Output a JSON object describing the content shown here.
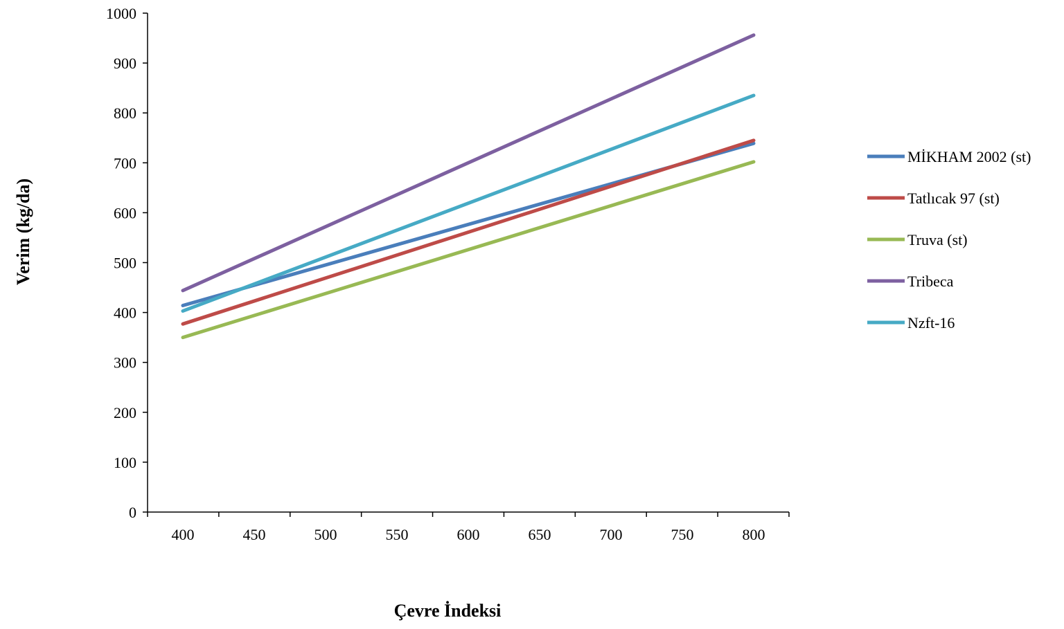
{
  "chart_data": {
    "type": "line",
    "title": "",
    "xlabel": "Çevre İndeksi",
    "ylabel": "Verim (kg/da)",
    "xlim": [
      400,
      800
    ],
    "ylim": [
      0,
      1000
    ],
    "x_ticks": [
      400,
      450,
      500,
      550,
      600,
      650,
      700,
      750,
      800
    ],
    "y_ticks": [
      0,
      100,
      200,
      300,
      400,
      500,
      600,
      700,
      800,
      900,
      1000
    ],
    "grid": false,
    "legend_position": "right",
    "series": [
      {
        "name": "MİKHAM 2002 (st)",
        "color": "#4a7ebb",
        "x": [
          400,
          800
        ],
        "y": [
          414,
          739
        ]
      },
      {
        "name": "Tatlıcak 97 (st)",
        "color": "#be4b48",
        "x": [
          400,
          800
        ],
        "y": [
          377,
          745
        ]
      },
      {
        "name": "Truva (st)",
        "color": "#98b954",
        "x": [
          400,
          800
        ],
        "y": [
          350,
          702
        ]
      },
      {
        "name": "Tribeca",
        "color": "#7d60a0",
        "x": [
          400,
          800
        ],
        "y": [
          444,
          956
        ]
      },
      {
        "name": "Nzft-16",
        "color": "#46aac5",
        "x": [
          400,
          800
        ],
        "y": [
          403,
          835
        ]
      }
    ]
  }
}
